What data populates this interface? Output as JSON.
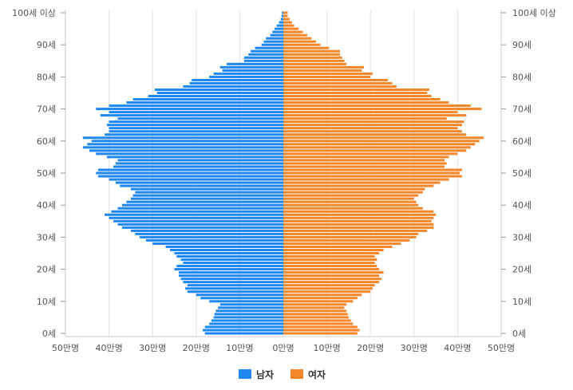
{
  "chart_data": {
    "type": "bar",
    "orientation": "population-pyramid",
    "title": "",
    "xlabel": "",
    "ylabel": "",
    "xlim": [
      -50,
      50
    ],
    "value_unit_note": "values in 만명 (10,000 persons), one bar per single year of age 0..100",
    "x_tick_labels": [
      "50만명",
      "40만명",
      "30만명",
      "20만명",
      "10만명",
      "0만명",
      "10만명",
      "20만명",
      "30만명",
      "40만명",
      "50만명"
    ],
    "y_tick_labels": [
      "0세",
      "10세",
      "20세",
      "30세",
      "40세",
      "50세",
      "60세",
      "70세",
      "80세",
      "90세",
      "100세 이상"
    ],
    "legend_position": "bottom-center",
    "grid": true,
    "categories": [
      0,
      1,
      2,
      3,
      4,
      5,
      6,
      7,
      8,
      9,
      10,
      11,
      12,
      13,
      14,
      15,
      16,
      17,
      18,
      19,
      20,
      21,
      22,
      23,
      24,
      25,
      26,
      27,
      28,
      29,
      30,
      31,
      32,
      33,
      34,
      35,
      36,
      37,
      38,
      39,
      40,
      41,
      42,
      43,
      44,
      45,
      46,
      47,
      48,
      49,
      50,
      51,
      52,
      53,
      54,
      55,
      56,
      57,
      58,
      59,
      60,
      61,
      62,
      63,
      64,
      65,
      66,
      67,
      68,
      69,
      70,
      71,
      72,
      73,
      74,
      75,
      76,
      77,
      78,
      79,
      80,
      81,
      82,
      83,
      84,
      85,
      86,
      87,
      88,
      89,
      90,
      91,
      92,
      93,
      94,
      95,
      96,
      97,
      98,
      99,
      100
    ],
    "series": [
      {
        "name": "남자",
        "color": "#1e87f0",
        "values": [
          18.0,
          18.5,
          18.0,
          17.0,
          16.5,
          16.0,
          15.8,
          15.5,
          15.0,
          14.5,
          17.0,
          19.0,
          20.0,
          22.0,
          22.5,
          22.0,
          23.0,
          23.5,
          24.0,
          24.0,
          25.0,
          24.5,
          23.0,
          23.5,
          24.5,
          25.0,
          26.0,
          27.0,
          30.0,
          31.5,
          33.0,
          34.0,
          35.0,
          37.0,
          38.0,
          39.0,
          40.0,
          41.0,
          39.5,
          38.0,
          37.0,
          36.0,
          35.0,
          34.5,
          34.0,
          35.0,
          37.5,
          38.5,
          40.0,
          42.5,
          43.0,
          42.5,
          39.0,
          38.5,
          38.0,
          40.5,
          43.0,
          44.5,
          46.0,
          45.0,
          44.0,
          46.0,
          41.0,
          40.0,
          40.0,
          40.5,
          40.0,
          38.0,
          42.0,
          40.0,
          43.0,
          40.0,
          36.0,
          34.5,
          31.0,
          29.0,
          29.5,
          23.0,
          21.5,
          21.0,
          17.0,
          16.0,
          14.0,
          14.5,
          13.0,
          9.0,
          9.0,
          8.0,
          7.5,
          6.5,
          5.0,
          4.5,
          4.0,
          3.0,
          2.5,
          2.0,
          1.5,
          1.0,
          0.6,
          0.4,
          0.3
        ]
      },
      {
        "name": "여자",
        "color": "#f5862a",
        "values": [
          17.0,
          17.5,
          17.0,
          16.0,
          15.5,
          15.0,
          14.8,
          14.5,
          14.0,
          14.5,
          16.0,
          17.0,
          18.0,
          20.0,
          20.5,
          21.0,
          22.0,
          22.5,
          22.0,
          23.0,
          22.0,
          21.5,
          21.0,
          21.5,
          21.0,
          22.0,
          23.0,
          25.0,
          27.0,
          29.0,
          30.5,
          31.0,
          33.0,
          34.5,
          34.5,
          34.0,
          34.5,
          35.0,
          34.5,
          32.0,
          31.0,
          30.5,
          30.0,
          31.0,
          32.0,
          32.5,
          34.5,
          36.0,
          38.0,
          41.0,
          40.5,
          41.0,
          37.0,
          37.5,
          37.0,
          38.0,
          40.0,
          42.0,
          43.0,
          44.0,
          45.0,
          46.0,
          42.0,
          41.0,
          40.0,
          41.0,
          41.5,
          37.5,
          42.0,
          40.0,
          45.5,
          43.0,
          38.0,
          36.0,
          34.0,
          33.0,
          33.5,
          26.0,
          25.0,
          24.0,
          20.0,
          20.5,
          18.0,
          18.5,
          14.5,
          14.0,
          13.5,
          13.0,
          13.0,
          10.5,
          8.5,
          7.5,
          6.5,
          5.5,
          4.5,
          3.5,
          2.5,
          2.0,
          1.5,
          1.0,
          1.0
        ]
      }
    ]
  }
}
